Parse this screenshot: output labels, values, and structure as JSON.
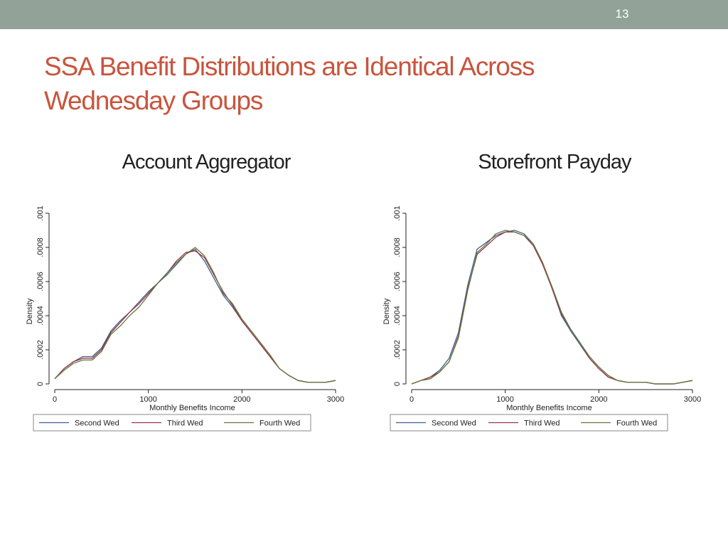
{
  "header": {
    "slide_number": "13"
  },
  "slide": {
    "title_line1": "SSA Benefit Distributions are Identical Across",
    "title_line2": "Wednesday Groups"
  },
  "colors": {
    "topbar": "#93a299",
    "title": "#c8553d",
    "series": [
      "#3f5f8f",
      "#a0304a",
      "#5f7a3a"
    ]
  },
  "chart_data": [
    {
      "type": "line",
      "title": "Account Aggregator",
      "xlabel": "Monthly Benefits Income",
      "ylabel": "Density",
      "xlim": [
        0,
        3000
      ],
      "ylim": [
        0,
        0.001
      ],
      "xticks": [
        0,
        1000,
        2000,
        3000
      ],
      "xtick_labels": [
        "0",
        "1000",
        "2000",
        "3000"
      ],
      "yticks": [
        0,
        0.0002,
        0.0004,
        0.0006,
        0.0008,
        0.001
      ],
      "ytick_labels": [
        "0",
        ".0002",
        ".0004",
        ".0006",
        ".0008",
        ".001"
      ],
      "grid": false,
      "legend_position": "bottom",
      "series": [
        {
          "name": "Second Wed",
          "x": [
            0,
            100,
            200,
            300,
            400,
            500,
            600,
            700,
            800,
            900,
            1000,
            1100,
            1200,
            1300,
            1400,
            1500,
            1600,
            1700,
            1800,
            1900,
            2000,
            2100,
            2200,
            2300,
            2400,
            2500,
            2600,
            2700,
            2800,
            2900,
            3000
          ],
          "y": [
            3e-05,
            9e-05,
            0.00013,
            0.00016,
            0.00016,
            0.00021,
            0.00031,
            0.00037,
            0.00042,
            0.00048,
            0.00054,
            0.00059,
            0.00064,
            0.0007,
            0.00076,
            0.00079,
            0.00072,
            0.00062,
            0.00052,
            0.00045,
            0.00037,
            0.0003,
            0.00023,
            0.00016,
            9e-05,
            5e-05,
            2e-05,
            1e-05,
            1e-05,
            1e-05,
            2e-05
          ]
        },
        {
          "name": "Third Wed",
          "x": [
            0,
            100,
            200,
            300,
            400,
            500,
            600,
            700,
            800,
            900,
            1000,
            1100,
            1200,
            1300,
            1400,
            1500,
            1600,
            1700,
            1800,
            1900,
            2000,
            2100,
            2200,
            2300,
            2400,
            2500,
            2600,
            2700,
            2800,
            2900,
            3000
          ],
          "y": [
            3e-05,
            9e-05,
            0.00013,
            0.00015,
            0.00015,
            0.0002,
            0.0003,
            0.00036,
            0.00042,
            0.00047,
            0.00053,
            0.00059,
            0.00065,
            0.00072,
            0.00077,
            0.00078,
            0.00074,
            0.00064,
            0.00054,
            0.00046,
            0.00037,
            0.0003,
            0.00023,
            0.00016,
            9e-05,
            5e-05,
            2e-05,
            1e-05,
            1e-05,
            1e-05,
            2e-05
          ]
        },
        {
          "name": "Fourth Wed",
          "x": [
            0,
            100,
            200,
            300,
            400,
            500,
            600,
            700,
            800,
            900,
            1000,
            1100,
            1200,
            1300,
            1400,
            1500,
            1600,
            1700,
            1800,
            1900,
            2000,
            2100,
            2200,
            2300,
            2400,
            2500,
            2600,
            2700,
            2800,
            2900,
            3000
          ],
          "y": [
            3e-05,
            8e-05,
            0.00012,
            0.00014,
            0.00014,
            0.00019,
            0.00029,
            0.00034,
            0.0004,
            0.00045,
            0.00052,
            0.00059,
            0.00065,
            0.00071,
            0.00076,
            0.0008,
            0.00075,
            0.00065,
            0.00053,
            0.00047,
            0.00038,
            0.00031,
            0.00024,
            0.00017,
            9e-05,
            5e-05,
            2e-05,
            1e-05,
            1e-05,
            1e-05,
            2e-05
          ]
        }
      ]
    },
    {
      "type": "line",
      "title": "Storefront Payday",
      "xlabel": "Monthly Benefits Income",
      "ylabel": "Density",
      "xlim": [
        0,
        3000
      ],
      "ylim": [
        0,
        0.001
      ],
      "xticks": [
        0,
        1000,
        2000,
        3000
      ],
      "xtick_labels": [
        "0",
        "1000",
        "2000",
        "3000"
      ],
      "yticks": [
        0,
        0.0002,
        0.0004,
        0.0006,
        0.0008,
        0.001
      ],
      "ytick_labels": [
        "0",
        ".0002",
        ".0004",
        ".0006",
        ".0008",
        ".001"
      ],
      "grid": false,
      "legend_position": "bottom",
      "series": [
        {
          "name": "Second Wed",
          "x": [
            0,
            100,
            200,
            300,
            400,
            500,
            600,
            700,
            800,
            900,
            1000,
            1100,
            1200,
            1300,
            1400,
            1500,
            1600,
            1700,
            1800,
            1900,
            2000,
            2100,
            2200,
            2300,
            2400,
            2500,
            2600,
            2700,
            2800,
            2900,
            3000
          ],
          "y": [
            0,
            2e-05,
            4e-05,
            8e-05,
            0.00015,
            0.0003,
            0.00058,
            0.00079,
            0.00083,
            0.00087,
            0.00089,
            0.0009,
            0.00088,
            0.00082,
            0.00071,
            0.00056,
            0.0004,
            0.00031,
            0.00023,
            0.00015,
            9e-05,
            4e-05,
            2e-05,
            1e-05,
            1e-05,
            1e-05,
            0,
            0,
            0,
            1e-05,
            2e-05
          ]
        },
        {
          "name": "Third Wed",
          "x": [
            0,
            100,
            200,
            300,
            400,
            500,
            600,
            700,
            800,
            900,
            1000,
            1100,
            1200,
            1300,
            1400,
            1500,
            1600,
            1700,
            1800,
            1900,
            2000,
            2100,
            2200,
            2300,
            2400,
            2500,
            2600,
            2700,
            2800,
            2900,
            3000
          ],
          "y": [
            0,
            2e-05,
            4e-05,
            7e-05,
            0.00013,
            0.00028,
            0.00056,
            0.00076,
            0.00081,
            0.00086,
            0.00089,
            0.00089,
            0.00087,
            0.00081,
            0.0007,
            0.00056,
            0.00041,
            0.00032,
            0.00024,
            0.00015,
            9e-05,
            4e-05,
            2e-05,
            1e-05,
            1e-05,
            1e-05,
            0,
            0,
            0,
            1e-05,
            2e-05
          ]
        },
        {
          "name": "Fourth Wed",
          "x": [
            0,
            100,
            200,
            300,
            400,
            500,
            600,
            700,
            800,
            900,
            1000,
            1100,
            1200,
            1300,
            1400,
            1500,
            1600,
            1700,
            1800,
            1900,
            2000,
            2100,
            2200,
            2300,
            2400,
            2500,
            2600,
            2700,
            2800,
            2900,
            3000
          ],
          "y": [
            0,
            2e-05,
            3e-05,
            7e-05,
            0.00013,
            0.00027,
            0.00055,
            0.00077,
            0.00082,
            0.00088,
            0.0009,
            0.00089,
            0.00087,
            0.00082,
            0.00071,
            0.00057,
            0.00042,
            0.00032,
            0.00024,
            0.00016,
            0.0001,
            5e-05,
            2e-05,
            1e-05,
            1e-05,
            1e-05,
            0,
            0,
            0,
            1e-05,
            2e-05
          ]
        }
      ]
    }
  ]
}
